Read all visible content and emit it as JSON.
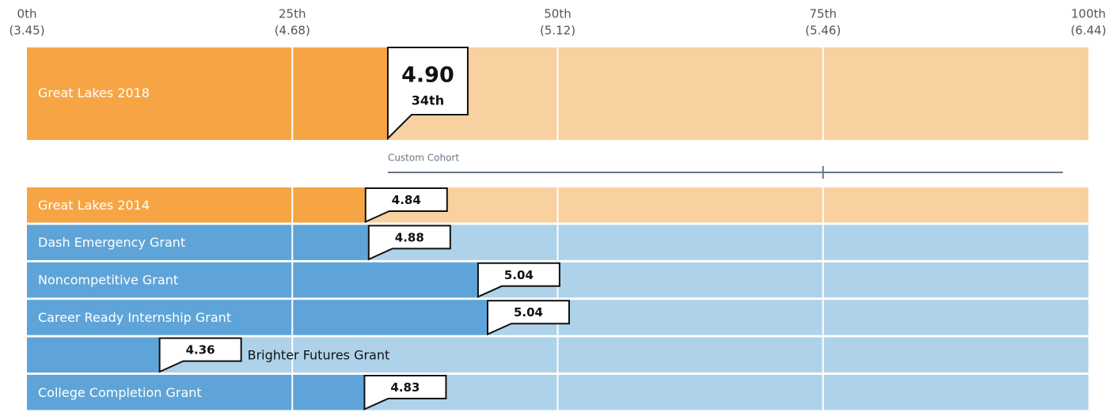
{
  "axis": {
    "ticks": [
      {
        "value": 0,
        "label": "0th",
        "sublabel": "(3.45)"
      },
      {
        "value": 25,
        "label": "25th",
        "sublabel": "(4.68)"
      },
      {
        "value": 50,
        "label": "50th",
        "sublabel": "(5.12)"
      },
      {
        "value": 75,
        "label": "75th",
        "sublabel": "(5.46)"
      },
      {
        "value": 100,
        "label": "100th",
        "sublabel": "(6.44)"
      }
    ]
  },
  "highlight": {
    "name": "Great Lakes 2018",
    "value": 4.9,
    "value_label": "4.90",
    "percentile": {
      "value": 34,
      "label": "34th"
    },
    "color": "#f7a544",
    "background": "#f9d0a0"
  },
  "cohort": {
    "label": "Custom Cohort",
    "range": [
      34,
      97.6
    ],
    "marker": 75,
    "color": "#6b7785"
  },
  "rows": [
    {
      "name": "Great Lakes 2014",
      "value": 4.84,
      "value_label": "4.84",
      "percentile": 31.9,
      "color": "#f7a544",
      "background": "#f9d0a0"
    },
    {
      "name": "Dash Emergency Grant",
      "value": 4.88,
      "value_label": "4.88",
      "percentile": 32.2,
      "color": "#5fa4d8",
      "background": "#aed2ea"
    },
    {
      "name": "Noncompetitive Grant",
      "value": 5.04,
      "value_label": "5.04",
      "percentile": 42.5,
      "color": "#5fa4d8",
      "background": "#aed2ea"
    },
    {
      "name": "Career Ready Internship Grant",
      "value": 5.04,
      "value_label": "5.04",
      "percentile": 43.4,
      "color": "#5fa4d8",
      "background": "#aed2ea"
    },
    {
      "name": "Brighter Futures Grant",
      "value": 4.36,
      "value_label": "4.36",
      "percentile": 12.5,
      "color": "#5fa4d8",
      "background": "#aed2ea"
    },
    {
      "name": "College Completion Grant",
      "value": 4.83,
      "value_label": "4.83",
      "percentile": 31.8,
      "color": "#5fa4d8",
      "background": "#aed2ea"
    }
  ]
}
